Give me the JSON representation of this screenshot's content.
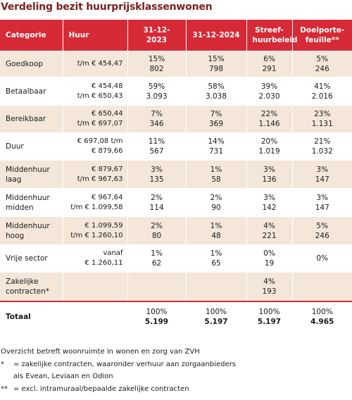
{
  "title": "Verdeling bezit huurprijsklassenwonen",
  "headers": {
    "categorie": "Categorie",
    "huur": "Huur",
    "d2023": "31-12-2023",
    "d2024": "31-12-2024",
    "streef_1": "Streef-",
    "streef_2": "huurbeleid",
    "doel_1": "Doelporte-",
    "doel_2": "feuille**"
  },
  "rows": [
    {
      "cat_1": "Goedkoop",
      "cat_2": "",
      "rent_1": "t/m € 454,47",
      "rent_2": "",
      "p2023": "15%",
      "n2023": "802",
      "p2024": "15%",
      "n2024": "798",
      "pstreef": "6%",
      "nstreef": "291",
      "pdoel": "5%",
      "ndoel": "246"
    },
    {
      "cat_1": "Betaalbaar",
      "cat_2": "",
      "rent_1": "€ 454,48",
      "rent_2": "t/m € 650,43",
      "p2023": "59%",
      "n2023": "3.093",
      "p2024": "58%",
      "n2024": "3.038",
      "pstreef": "39%",
      "nstreef": "2.030",
      "pdoel": "41%",
      "ndoel": "2.016"
    },
    {
      "cat_1": "Bereikbaar",
      "cat_2": "",
      "rent_1": "€ 650,44",
      "rent_2": "t/m € 697,07",
      "p2023": "7%",
      "n2023": "346",
      "p2024": "7%",
      "n2024": "369",
      "pstreef": "22%",
      "nstreef": "1.146",
      "pdoel": "23%",
      "ndoel": "1.131"
    },
    {
      "cat_1": "Duur",
      "cat_2": "",
      "rent_1": "€ 697,08 t/m",
      "rent_2": "€ 879,66",
      "p2023": "11%",
      "n2023": "567",
      "p2024": "14%",
      "n2024": "731",
      "pstreef": "20%",
      "nstreef": "1.019",
      "pdoel": "21%",
      "ndoel": "1.032"
    },
    {
      "cat_1": "Middenhuur",
      "cat_2": "laag",
      "rent_1": "€ 879,67",
      "rent_2": "t/m € 967,63",
      "p2023": "3%",
      "n2023": "135",
      "p2024": "1%",
      "n2024": "58",
      "pstreef": "3%",
      "nstreef": "136",
      "pdoel": "3%",
      "ndoel": "147"
    },
    {
      "cat_1": "Middenhuur",
      "cat_2": "midden",
      "rent_1": "€ 967,64",
      "rent_2": "t/m € 1.099,58",
      "p2023": "2%",
      "n2023": "114",
      "p2024": "2%",
      "n2024": "90",
      "pstreef": "3%",
      "nstreef": "142",
      "pdoel": "3%",
      "ndoel": "147"
    },
    {
      "cat_1": "Middenhuur",
      "cat_2": "hoog",
      "rent_1": "€ 1.099,59",
      "rent_2": "t/m € 1.260,10",
      "p2023": "2%",
      "n2023": "80",
      "p2024": "1%",
      "n2024": "48",
      "pstreef": "4%",
      "nstreef": "221",
      "pdoel": "5%",
      "ndoel": "246"
    },
    {
      "cat_1": "Vrije sector",
      "cat_2": "",
      "rent_1": "vanaf",
      "rent_2": "€ 1.260,11",
      "p2023": "1%",
      "n2023": "62",
      "p2024": "1%",
      "n2024": "65",
      "pstreef": "0%",
      "nstreef": "19",
      "pdoel": "0%",
      "ndoel": ""
    },
    {
      "cat_1": "Zakelijke",
      "cat_2": "contracten*",
      "rent_1": "",
      "rent_2": "",
      "p2023": "",
      "n2023": "",
      "p2024": "",
      "n2024": "",
      "pstreef": "4%",
      "nstreef": "193",
      "pdoel": "",
      "ndoel": ""
    }
  ],
  "total": {
    "label": "Totaal",
    "p2023": "100%",
    "n2023": "5.199",
    "p2024": "100%",
    "n2024": "5.197",
    "pstreef": "100%",
    "nstreef": "5.197",
    "pdoel": "100%",
    "ndoel": "4.965"
  },
  "notes": {
    "line1": "Overzicht betreft woonruimte in wonen en zorg van ZVH",
    "star1": "*",
    "line2": "= zakelijke contracten, waaronder verhuur aan zorgaanbieders",
    "line3": "als Evean, Leviaan en Odion",
    "star2": "**",
    "line4": "= excl. intramuraal/bepaalde zakelijke contracten"
  },
  "colors": {
    "header_red": "#d62a37",
    "band": "#f4e7d9",
    "title": "#7a1f1f"
  }
}
